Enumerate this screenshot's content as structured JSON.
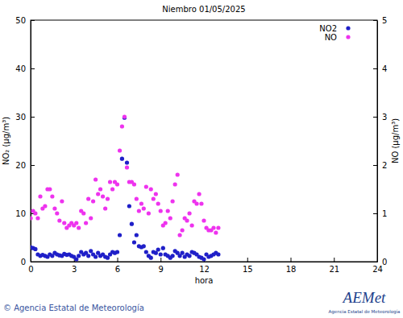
{
  "chart_data": {
    "type": "scatter",
    "title": "Niembro 01/05/2025",
    "x_label": "hora",
    "y_label": "NO₂ (µg/m³)",
    "y2_label": "NO (µg/m³)",
    "annotations": [
      "© Agencia Estatal de Meteorología",
      "AEMet",
      "Agencia Estatal de Meteorología"
    ],
    "x": [
      0,
      0.17,
      0.33,
      0.5,
      0.67,
      0.83,
      1,
      1.17,
      1.33,
      1.5,
      1.67,
      1.83,
      2,
      2.17,
      2.33,
      2.5,
      2.67,
      2.83,
      3,
      3.17,
      3.33,
      3.5,
      3.67,
      3.83,
      4,
      4.17,
      4.33,
      4.5,
      4.67,
      4.83,
      5,
      5.17,
      5.33,
      5.5,
      5.67,
      5.83,
      6,
      6.17,
      6.33,
      6.5,
      6.67,
      6.83,
      7,
      7.17,
      7.33,
      7.5,
      7.67,
      7.83,
      8,
      8.17,
      8.33,
      8.5,
      8.67,
      8.83,
      9,
      9.17,
      9.33,
      9.5,
      9.67,
      9.83,
      10,
      10.17,
      10.33,
      10.5,
      10.67,
      10.83,
      11,
      11.17,
      11.33,
      11.5,
      11.67,
      11.83,
      12,
      12.17,
      12.33,
      12.5,
      12.67,
      12.83,
      13
    ],
    "series": [
      {
        "name": "NO2",
        "color": "#1f1fc8",
        "marker": "circle",
        "values": [
          3.0,
          2.8,
          2.6,
          1.5,
          1.2,
          1.4,
          1.2,
          1.0,
          1.5,
          1.2,
          1.8,
          1.5,
          1.3,
          1.2,
          1.6,
          1.4,
          1.5,
          1.2,
          1.0,
          0.5,
          1.2,
          2.0,
          1.5,
          1.8,
          1.2,
          2.2,
          1.5,
          1.0,
          1.8,
          1.2,
          1.5,
          1.0,
          0.8,
          1.5,
          2.0,
          1.8,
          2.0,
          5.5,
          21.3,
          29.8,
          20.5,
          11.5,
          7.8,
          4.0,
          5.5,
          3.2,
          3.0,
          3.2,
          2.0,
          1.2,
          0.8,
          2.0,
          1.8,
          2.5,
          1.5,
          2.8,
          1.5,
          1.2,
          0.8,
          1.2,
          2.2,
          1.8,
          1.2,
          1.8,
          1.0,
          1.5,
          1.2,
          2.0,
          1.8,
          1.5,
          1.0,
          0.8,
          0.5,
          1.5,
          1.0,
          1.2,
          1.5,
          1.8,
          1.5
        ]
      },
      {
        "name": "NO",
        "color": "#ee33ee",
        "marker": "circle",
        "axis": "y2",
        "values": [
          0.9,
          1.05,
          1.0,
          0.9,
          1.35,
          1.1,
          1.15,
          1.5,
          1.5,
          1.35,
          1.1,
          1.0,
          0.85,
          1.25,
          0.8,
          0.7,
          0.75,
          0.8,
          0.75,
          0.8,
          0.7,
          1.05,
          1.0,
          0.8,
          1.3,
          0.9,
          1.25,
          1.7,
          1.4,
          1.5,
          1.35,
          1.1,
          1.3,
          1.65,
          1.5,
          1.65,
          1.6,
          2.3,
          2.8,
          3.0,
          1.95,
          1.65,
          1.65,
          1.6,
          1.3,
          1.05,
          1.2,
          1.1,
          1.55,
          1.0,
          1.5,
          1.3,
          1.4,
          1.2,
          1.05,
          0.75,
          0.8,
          1.05,
          0.9,
          1.25,
          1.6,
          1.8,
          0.55,
          0.65,
          0.9,
          0.85,
          1.0,
          0.75,
          1.25,
          1.2,
          1.4,
          1.2,
          0.85,
          0.7,
          0.65,
          0.65,
          0.7,
          0.6,
          0.7
        ]
      }
    ],
    "xlim": [
      0,
      24
    ],
    "xticks": [
      0,
      3,
      6,
      9,
      12,
      15,
      18,
      21,
      24
    ],
    "ylim": [
      0,
      50
    ],
    "yticks": [
      0,
      10,
      20,
      30,
      40,
      50
    ],
    "y2lim": [
      0,
      5
    ],
    "y2ticks": [
      0,
      1,
      2,
      3,
      4,
      5
    ],
    "legend": "top-right",
    "grid": false
  }
}
